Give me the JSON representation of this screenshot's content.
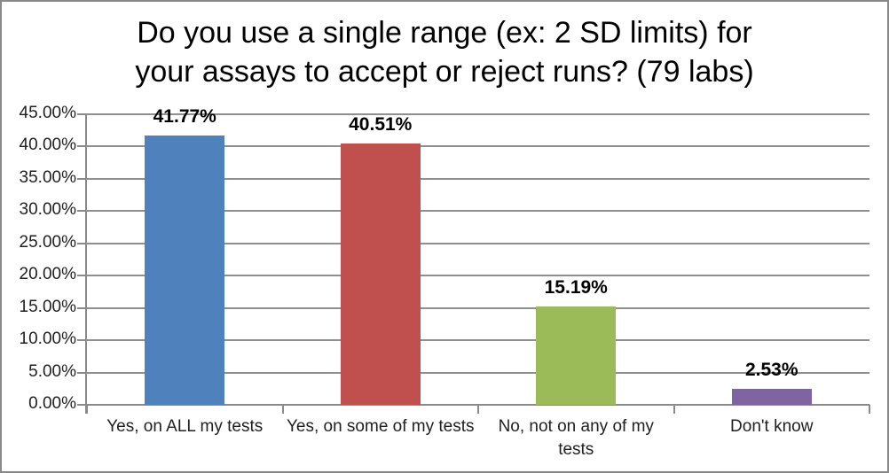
{
  "window": {
    "background": "#FFFFFF",
    "border_color": "#898989"
  },
  "chart_data": {
    "type": "bar",
    "title": "Do you use a single range (ex: 2 SD limits) for your assays to accept or reject runs? (79 labs)",
    "title_lines": [
      "Do you use a single range (ex: 2 SD limits) for",
      "your assays to accept or reject runs? (79 labs)"
    ],
    "categories": [
      "Yes, on ALL my tests",
      "Yes, on some of my tests",
      "No, not on any of my tests",
      "Don't know"
    ],
    "category_label_lines": [
      [
        "Yes, on ALL my tests"
      ],
      [
        "Yes, on some of my tests"
      ],
      [
        "No, not on any of my",
        "tests"
      ],
      [
        "Don't know"
      ]
    ],
    "values": [
      41.77,
      40.51,
      15.19,
      2.53
    ],
    "data_labels": [
      "41.77%",
      "40.51%",
      "15.19%",
      "2.53%"
    ],
    "bar_colors": [
      "#4F81BD",
      "#C0504D",
      "#9BBB59",
      "#8064A2"
    ],
    "xlabel": "",
    "ylabel": "",
    "ylim": [
      0,
      45
    ],
    "ytick_step": 5,
    "ytick_labels": [
      "0.00%",
      "5.00%",
      "10.00%",
      "15.00%",
      "20.00%",
      "25.00%",
      "30.00%",
      "35.00%",
      "40.00%",
      "45.00%"
    ],
    "grid": true,
    "gridline_color": "#8F8F8F",
    "axis_color": "#8A8A8A",
    "tick_color": "#8A8A8A",
    "axis_text_color": "#1F1F1F",
    "data_label_color": "#000000",
    "title_color": "#000000",
    "legend": null
  }
}
